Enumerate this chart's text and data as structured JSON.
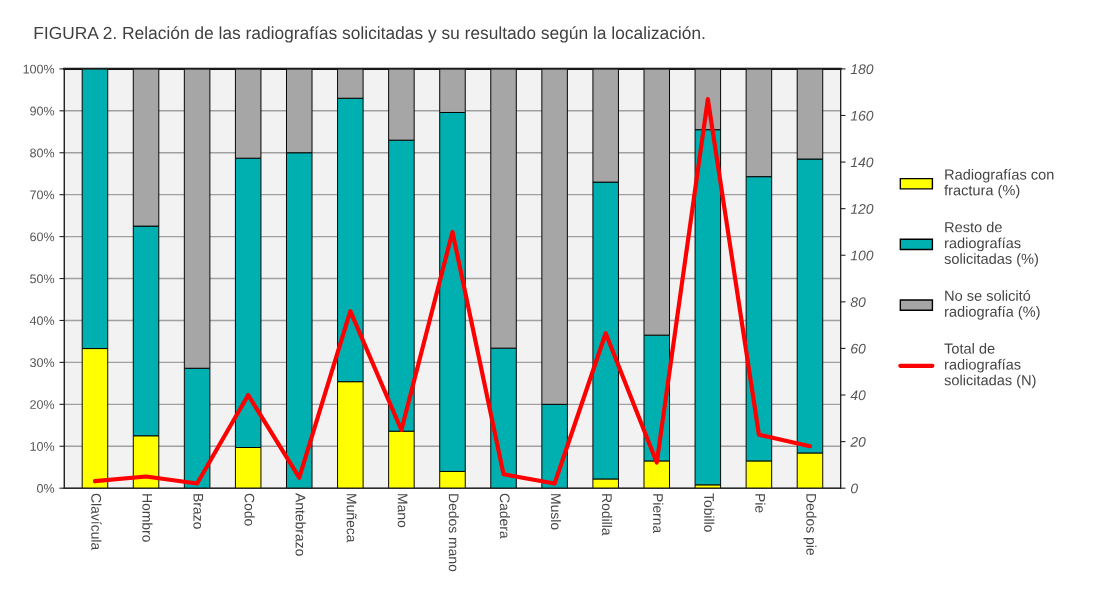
{
  "chart_data": {
    "type": "bar",
    "stacked": true,
    "title": "FIGURA 2. Relación de las radiografías solicitadas y su resultado según la localización.",
    "categories": [
      "Clavícula",
      "Hombro",
      "Brazo",
      "Codo",
      "Antebrazo",
      "Muñeca",
      "Mano",
      "Dedos mano",
      "Cadera",
      "Muslo",
      "Rodilla",
      "Pierna",
      "Tobillo",
      "Pie",
      "Dedos pie"
    ],
    "series": [
      {
        "name": "Radiografías con fractura (%)",
        "color": "#ffff00",
        "values": [
          33.3,
          12.5,
          0,
          9.7,
          0,
          25.4,
          13.6,
          4,
          0,
          0,
          2.2,
          6.5,
          0.8,
          6.5,
          8.4
        ]
      },
      {
        "name": "Resto de radiografías solicitadas (%)",
        "color": "#00b0b0",
        "values": [
          66.7,
          50,
          28.6,
          69,
          80,
          67.6,
          69.4,
          85.6,
          33.4,
          20,
          70.8,
          30,
          84.7,
          67.8,
          70.1
        ]
      },
      {
        "name": "No se solicitó radiografía (%)",
        "color": "#a6a6a6",
        "values": [
          null,
          37.5,
          71.4,
          21.3,
          20,
          7,
          17,
          10.4,
          66.6,
          80,
          27,
          63.5,
          14.5,
          25.7,
          21.5
        ]
      },
      {
        "name": "Total de radiografías solicitadas (N)",
        "type": "line",
        "axis": "y2",
        "color": "#ff0000",
        "values": [
          3,
          5,
          2,
          40,
          4.5,
          76,
          25,
          110,
          6,
          2,
          66.5,
          11,
          167,
          23,
          18
        ]
      }
    ],
    "ylim": [
      0,
      100
    ],
    "yticks": [
      {
        "value": 0,
        "label": "0%"
      },
      {
        "value": 10,
        "label": "10%"
      },
      {
        "value": 20,
        "label": "20%"
      },
      {
        "value": 30,
        "label": "30%"
      },
      {
        "value": 40,
        "label": "40%"
      },
      {
        "value": 50,
        "label": "50%"
      },
      {
        "value": 60,
        "label": "60%"
      },
      {
        "value": 70,
        "label": "70%"
      },
      {
        "value": 80,
        "label": "80%"
      },
      {
        "value": 90,
        "label": "90%"
      },
      {
        "value": 100,
        "label": "100%"
      }
    ],
    "y2lim": [
      0,
      180
    ],
    "y2ticks": [
      0,
      20,
      40,
      60,
      80,
      100,
      120,
      140,
      160,
      180
    ],
    "grid": "y",
    "legend": "right"
  }
}
